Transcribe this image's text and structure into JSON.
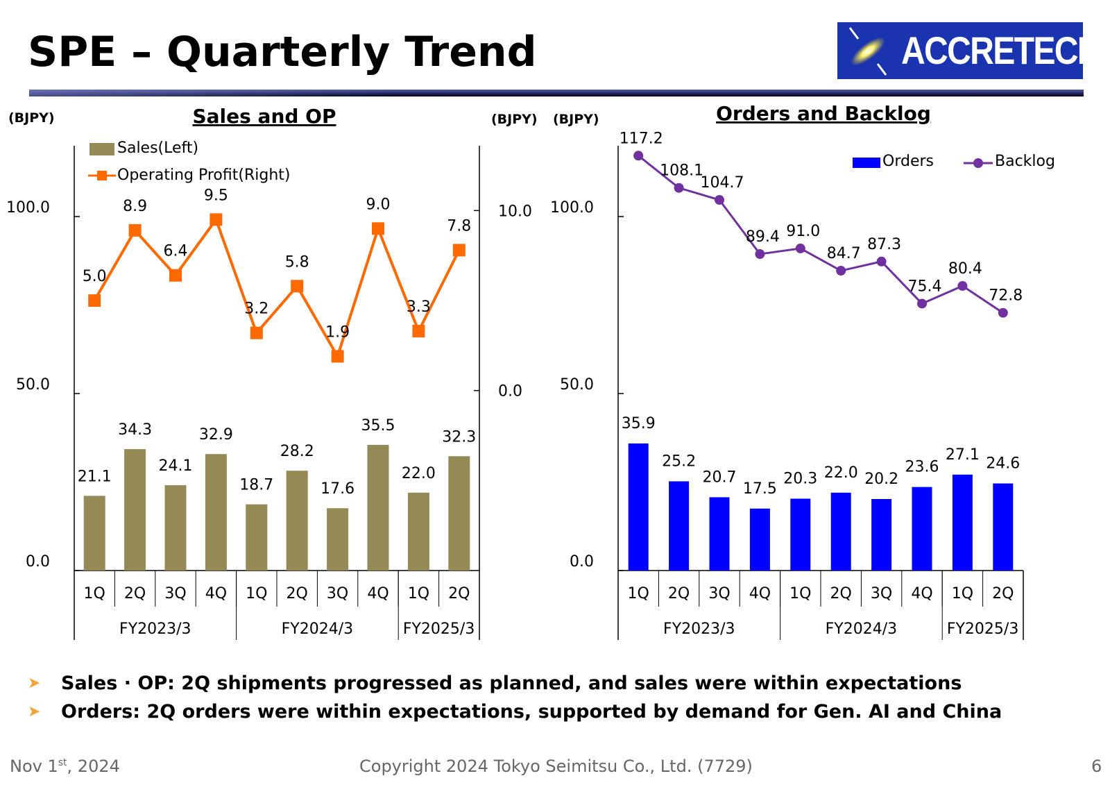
{
  "slide": {
    "title": "SPE – Quarterly Trend",
    "logo_text": "ACCRETECH",
    "bullets": [
      "Sales · OP: 2Q shipments progressed as planned, and sales were within expectations",
      "Orders: 2Q orders were within expectations, supported by demand for Gen. AI and China"
    ],
    "footer": {
      "date_prefix": "Nov 1",
      "date_sup": "st",
      "date_suffix": ", 2024",
      "copyright": "Copyright  2024 Tokyo Seimitsu Co., Ltd. (7729)",
      "page": "6"
    }
  },
  "colors": {
    "sales": "#958955",
    "op": "#ff6a00",
    "orders": "#0000ff",
    "backlog": "#7030a0",
    "logo_bg": "#1a34b0"
  },
  "chart_data": [
    {
      "type": "bar+line",
      "title": "Sales and OP",
      "unit_left": "(BJPY)",
      "unit_right": "(BJPY)",
      "categories": [
        "1Q",
        "2Q",
        "3Q",
        "4Q",
        "1Q",
        "2Q",
        "3Q",
        "4Q",
        "1Q",
        "2Q"
      ],
      "groups": [
        {
          "label": "FY2023/3",
          "count": 4
        },
        {
          "label": "FY2024/3",
          "count": 4
        },
        {
          "label": "FY2025/3",
          "count": 2
        }
      ],
      "series": [
        {
          "name": "Sales(Left)",
          "type": "bar",
          "axis": "left",
          "values": [
            21.1,
            34.3,
            24.1,
            32.9,
            18.7,
            28.2,
            17.6,
            35.5,
            22.0,
            32.3
          ],
          "labels": [
            "21.1",
            "34.3",
            "24.1",
            "32.9",
            "18.7",
            "28.2",
            "17.6",
            "35.5",
            "22.0",
            "32.3"
          ]
        },
        {
          "name": "Operating Profit(Right)",
          "type": "line",
          "axis": "right",
          "values": [
            5.0,
            8.9,
            6.4,
            9.5,
            3.2,
            5.8,
            1.9,
            9.0,
            3.3,
            7.8
          ],
          "labels": [
            "5.0",
            "8.9",
            "6.4",
            "9.5",
            "3.2",
            "5.8",
            "1.9",
            "9.0",
            "3.3",
            "7.8"
          ]
        }
      ],
      "left_ylim": [
        0,
        120
      ],
      "left_ticks": [
        0,
        50,
        100
      ],
      "left_tick_labels": [
        "0.0",
        "50.0",
        "100.0"
      ],
      "right_ylim": [
        -10,
        13.6
      ],
      "right_ticks": [
        0,
        10
      ],
      "right_tick_labels": [
        "0.0",
        "10.0"
      ],
      "legend": "top-left"
    },
    {
      "type": "bar+line",
      "title": "Orders and Backlog",
      "unit_left": "(BJPY)",
      "categories": [
        "1Q",
        "2Q",
        "3Q",
        "4Q",
        "1Q",
        "2Q",
        "3Q",
        "4Q",
        "1Q",
        "2Q"
      ],
      "groups": [
        {
          "label": "FY2023/3",
          "count": 4
        },
        {
          "label": "FY2024/3",
          "count": 4
        },
        {
          "label": "FY2025/3",
          "count": 2
        }
      ],
      "series": [
        {
          "name": "Orders",
          "type": "bar",
          "values": [
            35.9,
            25.2,
            20.7,
            17.5,
            20.3,
            22.0,
            20.2,
            23.6,
            27.1,
            24.6
          ],
          "labels": [
            "35.9",
            "25.2",
            "20.7",
            "17.5",
            "20.3",
            "22.0",
            "20.2",
            "23.6",
            "27.1",
            "24.6"
          ]
        },
        {
          "name": "Backlog",
          "type": "line",
          "values": [
            117.2,
            108.1,
            104.7,
            89.4,
            91.0,
            84.7,
            87.3,
            75.4,
            80.4,
            72.8
          ],
          "labels": [
            "117.2",
            "108.1",
            "104.7",
            "89.4",
            "91.0",
            "84.7",
            "87.3",
            "75.4",
            "80.4",
            "72.8"
          ]
        }
      ],
      "ylim": [
        0,
        120
      ],
      "ticks": [
        0,
        50,
        100
      ],
      "tick_labels": [
        "0.0",
        "50.0",
        "100.0"
      ],
      "legend": "top-right"
    }
  ]
}
